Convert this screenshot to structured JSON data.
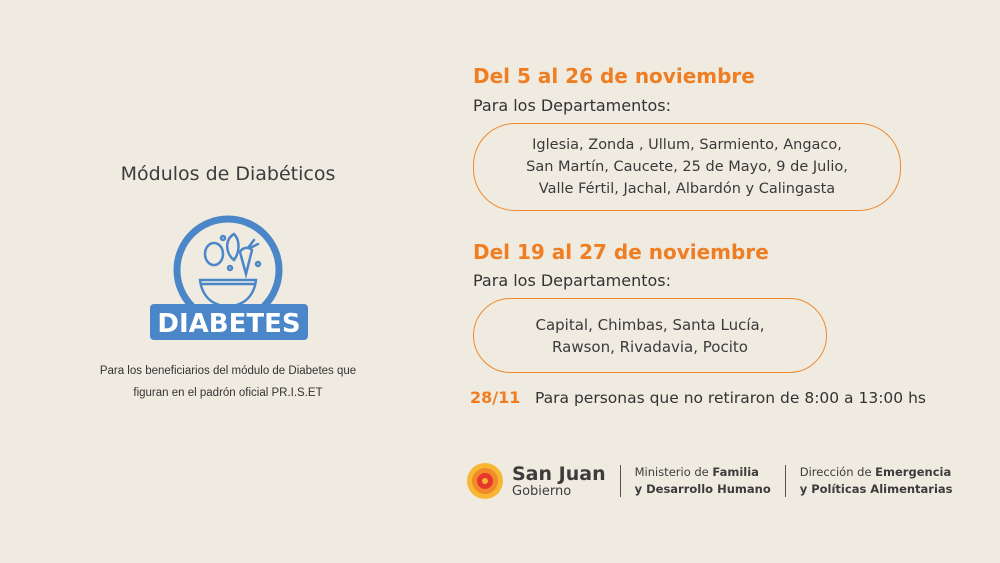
{
  "left": {
    "title": "Módulos de Diabéticos",
    "logo_text": "DIABETES",
    "caption_lines": [
      "Para los beneficiarios del módulo de Diabetes que",
      "figuran en el padrón oficial PR.I.S.ET"
    ]
  },
  "schedule": [
    {
      "dates": "Del 5 al 26 de noviembre",
      "label": "Para los Departamentos:",
      "lines": [
        "Iglesia, Zonda , Ullum, Sarmiento, Angaco,",
        "San Martín, Caucete, 25 de Mayo, 9 de Julio,",
        "Valle Fértil, Jachal, Albardón y Calingasta"
      ]
    },
    {
      "dates": "Del 19 al 27 de noviembre",
      "label": "Para los Departamentos:",
      "lines": [
        "Capital, Chimbas, Santa Lucía,",
        "Rawson, Rivadavia, Pocito"
      ]
    }
  ],
  "extra": {
    "date": "28/11",
    "note": "Para personas que no retiraron de 8:00 a 13:00 hs"
  },
  "footer": {
    "brand": "San Juan",
    "brand_sub": "Gobierno",
    "ministry_a": "Ministerio de ",
    "ministry_b": "Familia",
    "ministry_line2": "y Desarrollo Humano",
    "direction_a": "Dirección de ",
    "direction_b": "Emergencia",
    "direction_line2": "y Políticas Alimentarias"
  },
  "colors": {
    "background": "#f0ebe1",
    "accent": "#ef7d22",
    "logo_blue": "#4a86c8"
  }
}
